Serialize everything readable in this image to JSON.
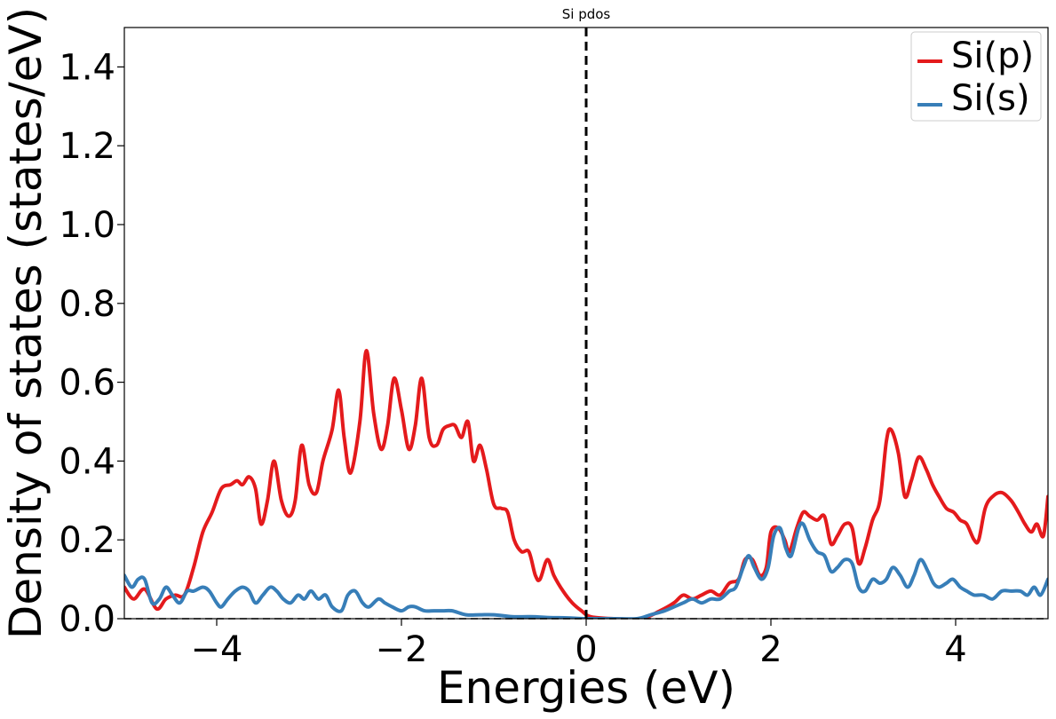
{
  "chart_data": {
    "type": "line",
    "title": "Si pdos",
    "xlabel": "Energies (eV)",
    "ylabel": "Density of states (states/eV)",
    "xlim": [
      -5,
      5
    ],
    "ylim": [
      0,
      1.5
    ],
    "xticks": [
      -4,
      -2,
      0,
      2,
      4
    ],
    "xtick_labels": [
      "−4",
      "−2",
      "0",
      "2",
      "4"
    ],
    "yticks": [
      0.0,
      0.2,
      0.4,
      0.6,
      0.8,
      1.0,
      1.2,
      1.4
    ],
    "ytick_labels": [
      "0.0",
      "0.2",
      "0.4",
      "0.6",
      "0.8",
      "1.0",
      "1.2",
      "1.4"
    ],
    "fermi_level": 0,
    "grid": false,
    "legend_position": "top-right",
    "series": [
      {
        "name": "Si(p)",
        "color": "#e41a1c",
        "points": [
          [
            -5.0,
            0.08
          ],
          [
            -4.9,
            0.05
          ],
          [
            -4.78,
            0.075
          ],
          [
            -4.65,
            0.025
          ],
          [
            -4.55,
            0.05
          ],
          [
            -4.45,
            0.06
          ],
          [
            -4.35,
            0.06
          ],
          [
            -4.25,
            0.13
          ],
          [
            -4.15,
            0.22
          ],
          [
            -4.05,
            0.27
          ],
          [
            -3.95,
            0.33
          ],
          [
            -3.85,
            0.34
          ],
          [
            -3.78,
            0.35
          ],
          [
            -3.72,
            0.34
          ],
          [
            -3.65,
            0.36
          ],
          [
            -3.58,
            0.33
          ],
          [
            -3.52,
            0.24
          ],
          [
            -3.45,
            0.3
          ],
          [
            -3.38,
            0.4
          ],
          [
            -3.3,
            0.3
          ],
          [
            -3.22,
            0.26
          ],
          [
            -3.15,
            0.3
          ],
          [
            -3.08,
            0.44
          ],
          [
            -3.0,
            0.34
          ],
          [
            -2.92,
            0.32
          ],
          [
            -2.85,
            0.4
          ],
          [
            -2.75,
            0.48
          ],
          [
            -2.68,
            0.58
          ],
          [
            -2.62,
            0.46
          ],
          [
            -2.55,
            0.37
          ],
          [
            -2.45,
            0.5
          ],
          [
            -2.38,
            0.68
          ],
          [
            -2.3,
            0.52
          ],
          [
            -2.22,
            0.43
          ],
          [
            -2.15,
            0.49
          ],
          [
            -2.08,
            0.61
          ],
          [
            -2.0,
            0.53
          ],
          [
            -1.92,
            0.43
          ],
          [
            -1.85,
            0.49
          ],
          [
            -1.78,
            0.61
          ],
          [
            -1.7,
            0.46
          ],
          [
            -1.62,
            0.44
          ],
          [
            -1.55,
            0.48
          ],
          [
            -1.48,
            0.49
          ],
          [
            -1.42,
            0.49
          ],
          [
            -1.35,
            0.46
          ],
          [
            -1.28,
            0.5
          ],
          [
            -1.22,
            0.4
          ],
          [
            -1.15,
            0.44
          ],
          [
            -1.08,
            0.38
          ],
          [
            -1.0,
            0.29
          ],
          [
            -0.92,
            0.28
          ],
          [
            -0.85,
            0.27
          ],
          [
            -0.78,
            0.2
          ],
          [
            -0.7,
            0.17
          ],
          [
            -0.62,
            0.17
          ],
          [
            -0.55,
            0.11
          ],
          [
            -0.5,
            0.1
          ],
          [
            -0.42,
            0.15
          ],
          [
            -0.35,
            0.11
          ],
          [
            -0.25,
            0.07
          ],
          [
            -0.15,
            0.04
          ],
          [
            -0.05,
            0.02
          ],
          [
            0.05,
            0.005
          ],
          [
            0.3,
            0.0
          ],
          [
            0.6,
            0.0
          ],
          [
            0.8,
            0.02
          ],
          [
            0.95,
            0.04
          ],
          [
            1.05,
            0.06
          ],
          [
            1.15,
            0.05
          ],
          [
            1.25,
            0.06
          ],
          [
            1.35,
            0.07
          ],
          [
            1.45,
            0.06
          ],
          [
            1.55,
            0.09
          ],
          [
            1.65,
            0.1
          ],
          [
            1.72,
            0.15
          ],
          [
            1.8,
            0.15
          ],
          [
            1.88,
            0.11
          ],
          [
            1.95,
            0.13
          ],
          [
            2.0,
            0.22
          ],
          [
            2.08,
            0.23
          ],
          [
            2.15,
            0.2
          ],
          [
            2.2,
            0.17
          ],
          [
            2.28,
            0.23
          ],
          [
            2.35,
            0.27
          ],
          [
            2.42,
            0.26
          ],
          [
            2.5,
            0.25
          ],
          [
            2.58,
            0.26
          ],
          [
            2.65,
            0.19
          ],
          [
            2.72,
            0.21
          ],
          [
            2.8,
            0.24
          ],
          [
            2.88,
            0.23
          ],
          [
            2.95,
            0.14
          ],
          [
            3.02,
            0.18
          ],
          [
            3.1,
            0.25
          ],
          [
            3.18,
            0.3
          ],
          [
            3.25,
            0.45
          ],
          [
            3.3,
            0.48
          ],
          [
            3.38,
            0.42
          ],
          [
            3.45,
            0.31
          ],
          [
            3.52,
            0.35
          ],
          [
            3.6,
            0.41
          ],
          [
            3.68,
            0.38
          ],
          [
            3.75,
            0.34
          ],
          [
            3.82,
            0.31
          ],
          [
            3.9,
            0.28
          ],
          [
            3.98,
            0.27
          ],
          [
            4.05,
            0.25
          ],
          [
            4.12,
            0.24
          ],
          [
            4.2,
            0.2
          ],
          [
            4.25,
            0.2
          ],
          [
            4.32,
            0.28
          ],
          [
            4.4,
            0.31
          ],
          [
            4.5,
            0.32
          ],
          [
            4.6,
            0.3
          ],
          [
            4.68,
            0.27
          ],
          [
            4.75,
            0.24
          ],
          [
            4.82,
            0.22
          ],
          [
            4.88,
            0.24
          ],
          [
            4.95,
            0.21
          ],
          [
            5.0,
            0.31
          ]
        ]
      },
      {
        "name": "Si(s)",
        "color": "#377eb8",
        "points": [
          [
            -5.0,
            0.11
          ],
          [
            -4.92,
            0.08
          ],
          [
            -4.85,
            0.1
          ],
          [
            -4.78,
            0.1
          ],
          [
            -4.7,
            0.04
          ],
          [
            -4.62,
            0.05
          ],
          [
            -4.55,
            0.08
          ],
          [
            -4.48,
            0.06
          ],
          [
            -4.4,
            0.04
          ],
          [
            -4.32,
            0.07
          ],
          [
            -4.25,
            0.07
          ],
          [
            -4.15,
            0.08
          ],
          [
            -4.08,
            0.07
          ],
          [
            -4.0,
            0.04
          ],
          [
            -3.95,
            0.03
          ],
          [
            -3.88,
            0.05
          ],
          [
            -3.8,
            0.07
          ],
          [
            -3.72,
            0.08
          ],
          [
            -3.65,
            0.07
          ],
          [
            -3.58,
            0.04
          ],
          [
            -3.5,
            0.06
          ],
          [
            -3.42,
            0.08
          ],
          [
            -3.35,
            0.07
          ],
          [
            -3.28,
            0.05
          ],
          [
            -3.2,
            0.04
          ],
          [
            -3.12,
            0.06
          ],
          [
            -3.05,
            0.05
          ],
          [
            -2.98,
            0.07
          ],
          [
            -2.9,
            0.05
          ],
          [
            -2.82,
            0.06
          ],
          [
            -2.75,
            0.03
          ],
          [
            -2.65,
            0.02
          ],
          [
            -2.58,
            0.06
          ],
          [
            -2.5,
            0.07
          ],
          [
            -2.42,
            0.04
          ],
          [
            -2.35,
            0.03
          ],
          [
            -2.25,
            0.05
          ],
          [
            -2.18,
            0.04
          ],
          [
            -2.1,
            0.03
          ],
          [
            -2.0,
            0.02
          ],
          [
            -1.92,
            0.03
          ],
          [
            -1.85,
            0.03
          ],
          [
            -1.75,
            0.02
          ],
          [
            -1.65,
            0.02
          ],
          [
            -1.55,
            0.02
          ],
          [
            -1.45,
            0.02
          ],
          [
            -1.3,
            0.01
          ],
          [
            -1.15,
            0.01
          ],
          [
            -1.0,
            0.01
          ],
          [
            -0.8,
            0.005
          ],
          [
            -0.6,
            0.005
          ],
          [
            -0.4,
            0.003
          ],
          [
            -0.2,
            0.002
          ],
          [
            0.0,
            0.0
          ],
          [
            0.3,
            0.0
          ],
          [
            0.55,
            0.0
          ],
          [
            0.7,
            0.01
          ],
          [
            0.85,
            0.02
          ],
          [
            0.95,
            0.03
          ],
          [
            1.05,
            0.04
          ],
          [
            1.15,
            0.05
          ],
          [
            1.25,
            0.04
          ],
          [
            1.35,
            0.05
          ],
          [
            1.45,
            0.05
          ],
          [
            1.55,
            0.07
          ],
          [
            1.62,
            0.08
          ],
          [
            1.7,
            0.13
          ],
          [
            1.76,
            0.16
          ],
          [
            1.82,
            0.13
          ],
          [
            1.9,
            0.1
          ],
          [
            1.97,
            0.13
          ],
          [
            2.03,
            0.21
          ],
          [
            2.1,
            0.23
          ],
          [
            2.16,
            0.18
          ],
          [
            2.22,
            0.16
          ],
          [
            2.3,
            0.23
          ],
          [
            2.35,
            0.24
          ],
          [
            2.42,
            0.2
          ],
          [
            2.5,
            0.17
          ],
          [
            2.58,
            0.16
          ],
          [
            2.65,
            0.12
          ],
          [
            2.72,
            0.13
          ],
          [
            2.8,
            0.15
          ],
          [
            2.88,
            0.14
          ],
          [
            2.95,
            0.08
          ],
          [
            3.02,
            0.07
          ],
          [
            3.1,
            0.1
          ],
          [
            3.18,
            0.09
          ],
          [
            3.25,
            0.1
          ],
          [
            3.32,
            0.13
          ],
          [
            3.4,
            0.11
          ],
          [
            3.48,
            0.08
          ],
          [
            3.55,
            0.11
          ],
          [
            3.62,
            0.15
          ],
          [
            3.7,
            0.12
          ],
          [
            3.76,
            0.09
          ],
          [
            3.82,
            0.08
          ],
          [
            3.9,
            0.09
          ],
          [
            3.97,
            0.1
          ],
          [
            4.05,
            0.08
          ],
          [
            4.12,
            0.07
          ],
          [
            4.2,
            0.06
          ],
          [
            4.3,
            0.06
          ],
          [
            4.4,
            0.05
          ],
          [
            4.5,
            0.07
          ],
          [
            4.6,
            0.07
          ],
          [
            4.7,
            0.07
          ],
          [
            4.78,
            0.06
          ],
          [
            4.85,
            0.08
          ],
          [
            4.92,
            0.06
          ],
          [
            5.0,
            0.1
          ]
        ]
      }
    ]
  }
}
